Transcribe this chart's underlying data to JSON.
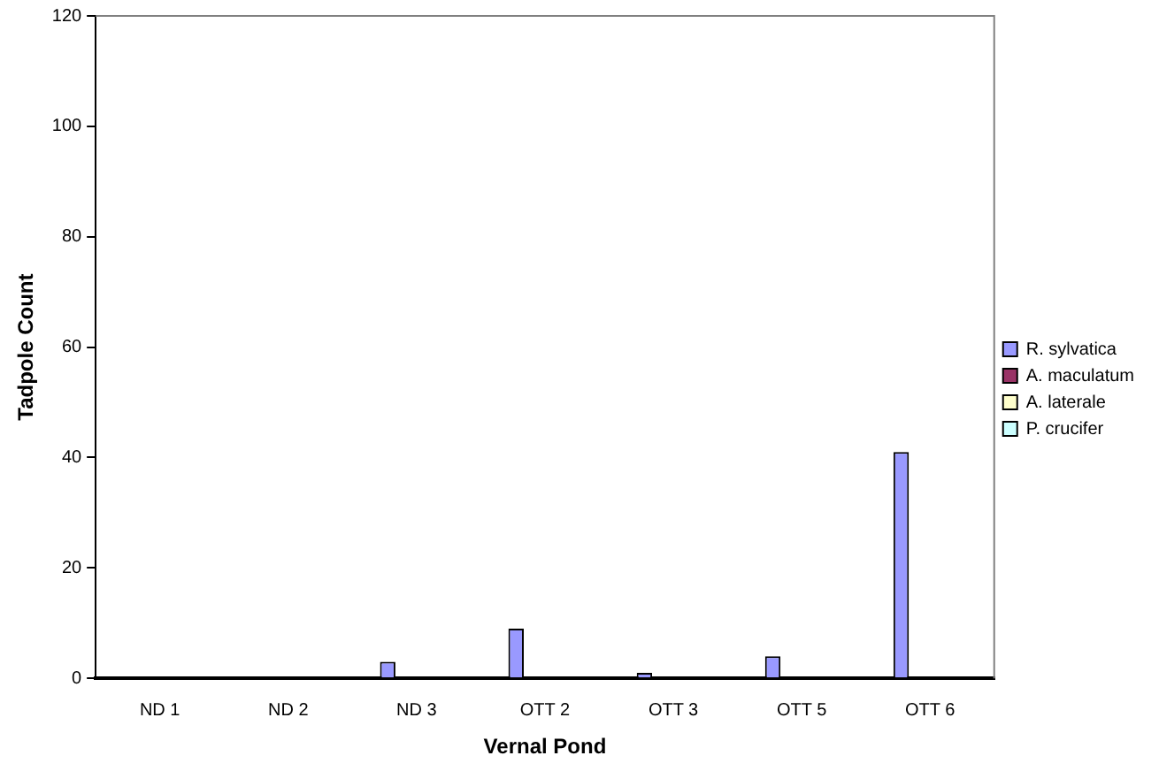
{
  "chart_data": {
    "type": "bar",
    "xlabel": "Vernal Pond",
    "ylabel": "Tadpole Count",
    "categories": [
      "ND 1",
      "ND 2",
      "ND 3",
      "OTT 2",
      "OTT 3",
      "OTT 5",
      "OTT 6"
    ],
    "series": [
      {
        "name": "R. sylvatica",
        "color": "#9999ff",
        "values": [
          0,
          0,
          3,
          9,
          1,
          4,
          41
        ]
      },
      {
        "name": "A. maculatum",
        "color": "#993366",
        "values": [
          0,
          0,
          0,
          0,
          0,
          0,
          0
        ]
      },
      {
        "name": "A. laterale",
        "color": "#ffffcc",
        "values": [
          0,
          0,
          0,
          0,
          0,
          0,
          0
        ]
      },
      {
        "name": "P. crucifer",
        "color": "#ccffff",
        "values": [
          0,
          0,
          0,
          0,
          0,
          0,
          0
        ]
      }
    ],
    "ylim": [
      0,
      120
    ],
    "yticks": [
      0,
      20,
      40,
      60,
      80,
      100,
      120
    ],
    "grid": false,
    "legend": "right"
  }
}
